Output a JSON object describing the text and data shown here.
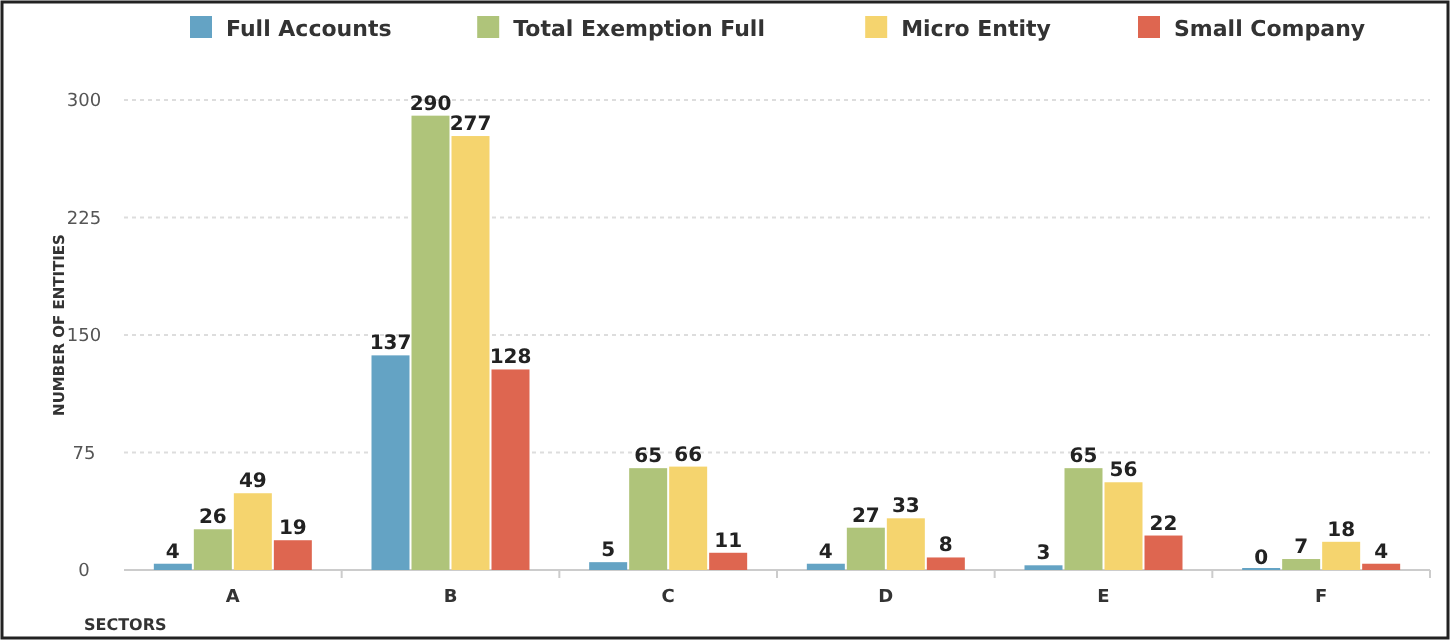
{
  "chart_data": {
    "type": "bar",
    "xlabel": "SECTORS",
    "ylabel": "NUMBER OF ENTITIES",
    "categories": [
      "A",
      "B",
      "C",
      "D",
      "E",
      "F"
    ],
    "series": [
      {
        "name": "Full Accounts",
        "color": "#64a3c4",
        "values": [
          4,
          137,
          5,
          4,
          3,
          0
        ]
      },
      {
        "name": "Total Exemption Full",
        "color": "#afc47a",
        "values": [
          26,
          290,
          65,
          27,
          65,
          7
        ]
      },
      {
        "name": "Micro Entity",
        "color": "#f5d46e",
        "values": [
          49,
          277,
          66,
          33,
          56,
          18
        ]
      },
      {
        "name": "Small Company",
        "color": "#de6650",
        "values": [
          19,
          128,
          11,
          8,
          22,
          4
        ]
      }
    ],
    "ylim": [
      0,
      300
    ],
    "yticks": [
      0,
      75,
      150,
      225,
      300
    ],
    "grid": "y",
    "legend": "top",
    "data_labels": true
  }
}
